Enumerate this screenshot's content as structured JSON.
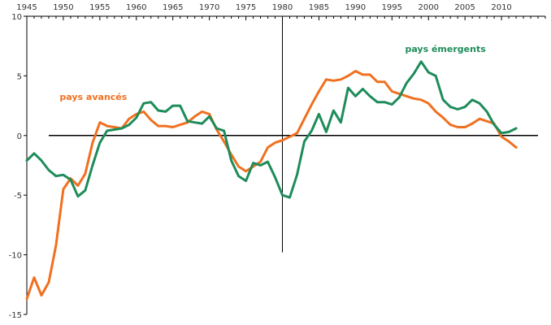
{
  "chart_data": {
    "type": "line",
    "title": "",
    "xlabel": "",
    "ylabel": "",
    "xlim": [
      1945,
      2016
    ],
    "ylim": [
      -15,
      10
    ],
    "x_ticks": [
      1945,
      1950,
      1955,
      1960,
      1965,
      1970,
      1975,
      1980,
      1985,
      1990,
      1995,
      2000,
      2005,
      2010
    ],
    "y_ticks": [
      10,
      5,
      0,
      -5,
      -10,
      -15
    ],
    "grid": false,
    "zero_line": true,
    "vertical_marker_x": 1980,
    "series": [
      {
        "name": "pays avancés",
        "color": "#f07020",
        "x": [
          1945,
          1946,
          1947,
          1948,
          1949,
          1950,
          1951,
          1952,
          1953,
          1954,
          1955,
          1956,
          1957,
          1958,
          1959,
          1960,
          1961,
          1962,
          1963,
          1964,
          1965,
          1966,
          1967,
          1968,
          1969,
          1970,
          1971,
          1972,
          1973,
          1974,
          1975,
          1976,
          1977,
          1978,
          1979,
          1980,
          1981,
          1982,
          1983,
          1984,
          1985,
          1986,
          1987,
          1988,
          1989,
          1990,
          1991,
          1992,
          1993,
          1994,
          1995,
          1996,
          1997,
          1998,
          1999,
          2000,
          2001,
          2002,
          2003,
          2004,
          2005,
          2006,
          2007,
          2008,
          2009,
          2010,
          2011,
          2012
        ],
        "values": [
          -13.7,
          -11.9,
          -13.4,
          -12.3,
          -9.2,
          -4.5,
          -3.6,
          -4.2,
          -3.2,
          -0.6,
          1.1,
          0.8,
          0.7,
          0.6,
          1.4,
          1.8,
          2.0,
          1.3,
          0.8,
          0.8,
          0.7,
          0.9,
          1.1,
          1.6,
          2.0,
          1.8,
          0.5,
          -0.5,
          -1.6,
          -2.6,
          -3.0,
          -2.6,
          -2.2,
          -1.0,
          -0.6,
          -0.4,
          -0.1,
          0.2,
          1.4,
          2.6,
          3.7,
          4.7,
          4.6,
          4.7,
          5.0,
          5.4,
          5.1,
          5.1,
          4.5,
          4.5,
          3.7,
          3.5,
          3.3,
          3.1,
          3.0,
          2.7,
          2.0,
          1.5,
          0.9,
          0.7,
          0.7,
          1.0,
          1.4,
          1.2,
          1.0,
          -0.1,
          -0.5,
          -1.0
        ]
      },
      {
        "name": "pays émergents",
        "color": "#1e8c5a",
        "x": [
          1945,
          1946,
          1947,
          1948,
          1949,
          1950,
          1951,
          1952,
          1953,
          1954,
          1955,
          1956,
          1957,
          1958,
          1959,
          1960,
          1961,
          1962,
          1963,
          1964,
          1965,
          1966,
          1967,
          1968,
          1969,
          1970,
          1971,
          1972,
          1973,
          1974,
          1975,
          1976,
          1977,
          1978,
          1979,
          1980,
          1981,
          1982,
          1983,
          1984,
          1985,
          1986,
          1987,
          1988,
          1989,
          1990,
          1991,
          1992,
          1993,
          1994,
          1995,
          1996,
          1997,
          1998,
          1999,
          2000,
          2001,
          2002,
          2003,
          2004,
          2005,
          2006,
          2007,
          2008,
          2009,
          2010,
          2011,
          2012
        ],
        "values": [
          -2.1,
          -1.5,
          -2.1,
          -2.9,
          -3.4,
          -3.3,
          -3.7,
          -5.1,
          -4.6,
          -2.5,
          -0.6,
          0.4,
          0.5,
          0.6,
          0.9,
          1.5,
          2.7,
          2.8,
          2.1,
          2.0,
          2.5,
          2.5,
          1.2,
          1.1,
          1.0,
          1.6,
          0.6,
          0.4,
          -2.1,
          -3.4,
          -3.8,
          -2.3,
          -2.5,
          -2.2,
          -3.5,
          -5.0,
          -5.2,
          -3.3,
          -0.5,
          0.4,
          1.8,
          0.3,
          2.1,
          1.1,
          4.0,
          3.3,
          3.9,
          3.3,
          2.8,
          2.8,
          2.6,
          3.2,
          4.4,
          5.2,
          6.2,
          5.3,
          5.0,
          3.0,
          2.4,
          2.2,
          2.4,
          3.0,
          2.7,
          2.0,
          0.9,
          0.2,
          0.3,
          0.6
        ]
      }
    ]
  }
}
